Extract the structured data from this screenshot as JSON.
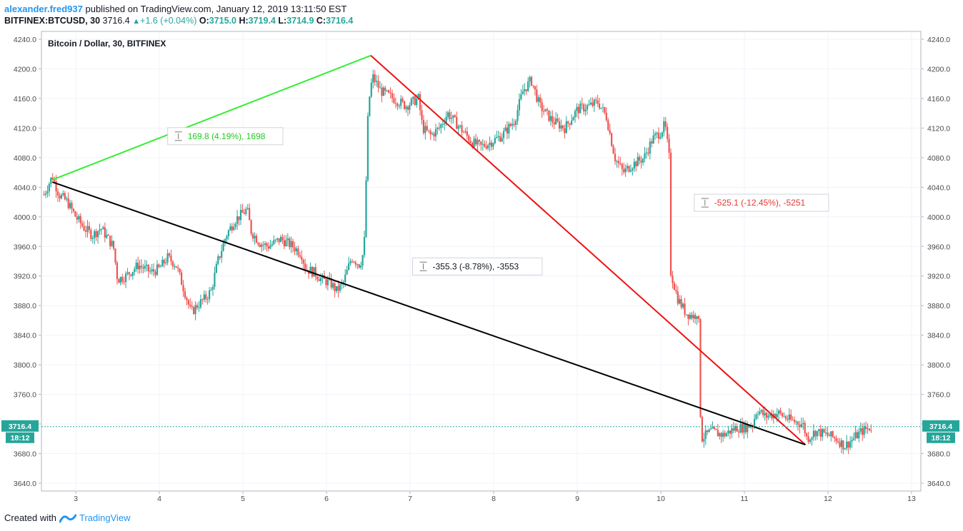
{
  "header": {
    "username": "alexander.fred937",
    "published_text": "published on TradingView.com, January 12, 2019 13:11:50 EST",
    "symbol": "BITFINEX:BTCUSD, 30",
    "last_price": "3716.4",
    "change": "+1.6 (+0.04%)",
    "o_label": "O:",
    "o_value": "3715.0",
    "h_label": "H:",
    "h_value": "3719.4",
    "l_label": "L:",
    "l_value": "3714.9",
    "c_label": "C:",
    "c_value": "3716.4"
  },
  "footer": {
    "created_with": "Created with",
    "brand": "TradingView"
  },
  "colors": {
    "up": "#26a69a",
    "down": "#ef5350",
    "green_line": "#33ee33",
    "red_line": "#ee1111",
    "black_line": "#000000",
    "price_line": "#26a69a"
  },
  "chart_data": {
    "type": "candlestick",
    "title": "Bitcoin / Dollar, 30, BITFINEX",
    "xlabel": "",
    "ylabel": "",
    "x_ticks": [
      "3",
      "4",
      "5",
      "6",
      "7",
      "8",
      "9",
      "10",
      "11",
      "12",
      "13"
    ],
    "x_tick_values": [
      3,
      4,
      5,
      6,
      7,
      8,
      9,
      10,
      11,
      12,
      13
    ],
    "xlim": [
      2.55,
      13.1
    ],
    "y_ticks": [
      "4240.0",
      "4200.0",
      "4160.0",
      "4120.0",
      "4080.0",
      "4040.0",
      "4000.0",
      "3960.0",
      "3920.0",
      "3880.0",
      "3840.0",
      "3800.0",
      "3760.0",
      "3720.0",
      "3680.0",
      "3640.0"
    ],
    "y_tick_values": [
      4240,
      4200,
      4160,
      4120,
      4080,
      4040,
      4000,
      3960,
      3920,
      3880,
      3840,
      3800,
      3760,
      3720,
      3680,
      3640
    ],
    "ylim": [
      3630,
      4248
    ],
    "current_price": 3716.4,
    "current_price_label": "3716.4",
    "countdown_label": "18:12",
    "price_path": [
      [
        2.62,
        4030
      ],
      [
        2.72,
        4055
      ],
      [
        2.8,
        4030
      ],
      [
        2.9,
        4020
      ],
      [
        3.0,
        4000
      ],
      [
        3.1,
        3985
      ],
      [
        3.2,
        3975
      ],
      [
        3.3,
        3985
      ],
      [
        3.45,
        3960
      ],
      [
        3.5,
        3915
      ],
      [
        3.6,
        3920
      ],
      [
        3.75,
        3935
      ],
      [
        3.9,
        3925
      ],
      [
        4.0,
        3930
      ],
      [
        4.1,
        3945
      ],
      [
        4.2,
        3935
      ],
      [
        4.3,
        3900
      ],
      [
        4.38,
        3870
      ],
      [
        4.45,
        3880
      ],
      [
        4.55,
        3890
      ],
      [
        4.62,
        3900
      ],
      [
        4.7,
        3940
      ],
      [
        4.8,
        3975
      ],
      [
        4.9,
        3995
      ],
      [
        5.0,
        4005
      ],
      [
        5.05,
        4010
      ],
      [
        5.1,
        3980
      ],
      [
        5.2,
        3965
      ],
      [
        5.3,
        3960
      ],
      [
        5.45,
        3970
      ],
      [
        5.6,
        3960
      ],
      [
        5.7,
        3950
      ],
      [
        5.75,
        3930
      ],
      [
        5.85,
        3925
      ],
      [
        5.95,
        3915
      ],
      [
        6.05,
        3910
      ],
      [
        6.12,
        3900
      ],
      [
        6.2,
        3910
      ],
      [
        6.3,
        3945
      ],
      [
        6.4,
        3935
      ],
      [
        6.45,
        3955
      ],
      [
        6.5,
        4150
      ],
      [
        6.55,
        4190
      ],
      [
        6.65,
        4170
      ],
      [
        6.8,
        4160
      ],
      [
        6.95,
        4150
      ],
      [
        7.1,
        4160
      ],
      [
        7.15,
        4120
      ],
      [
        7.25,
        4110
      ],
      [
        7.35,
        4120
      ],
      [
        7.45,
        4140
      ],
      [
        7.6,
        4120
      ],
      [
        7.75,
        4100
      ],
      [
        7.85,
        4095
      ],
      [
        7.95,
        4100
      ],
      [
        8.1,
        4110
      ],
      [
        8.25,
        4130
      ],
      [
        8.35,
        4170
      ],
      [
        8.45,
        4185
      ],
      [
        8.55,
        4150
      ],
      [
        8.7,
        4130
      ],
      [
        8.85,
        4120
      ],
      [
        9.0,
        4145
      ],
      [
        9.15,
        4150
      ],
      [
        9.25,
        4155
      ],
      [
        9.35,
        4135
      ],
      [
        9.45,
        4080
      ],
      [
        9.55,
        4060
      ],
      [
        9.65,
        4070
      ],
      [
        9.8,
        4080
      ],
      [
        9.9,
        4105
      ],
      [
        10.0,
        4115
      ],
      [
        10.05,
        4125
      ],
      [
        10.1,
        4080
      ],
      [
        10.12,
        3925
      ],
      [
        10.2,
        3890
      ],
      [
        10.3,
        3870
      ],
      [
        10.4,
        3865
      ],
      [
        10.45,
        3875
      ],
      [
        10.48,
        3700
      ],
      [
        10.6,
        3710
      ],
      [
        10.75,
        3705
      ],
      [
        10.9,
        3715
      ],
      [
        11.0,
        3715
      ],
      [
        11.1,
        3720
      ],
      [
        11.15,
        3740
      ],
      [
        11.25,
        3730
      ],
      [
        11.4,
        3735
      ],
      [
        11.55,
        3725
      ],
      [
        11.7,
        3720
      ],
      [
        11.75,
        3700
      ],
      [
        11.85,
        3710
      ],
      [
        12.0,
        3705
      ],
      [
        12.1,
        3700
      ],
      [
        12.2,
        3690
      ],
      [
        12.3,
        3700
      ],
      [
        12.4,
        3710
      ],
      [
        12.52,
        3716
      ]
    ],
    "trendlines": [
      {
        "color": "green",
        "from": [
          2.72,
          4050
        ],
        "to": [
          6.53,
          4218
        ]
      },
      {
        "color": "red",
        "from": [
          6.53,
          4218
        ],
        "to": [
          11.73,
          3692
        ]
      },
      {
        "color": "black",
        "from": [
          2.72,
          4047
        ],
        "to": [
          11.73,
          3692
        ]
      }
    ],
    "annotations": [
      {
        "text": "169.8 (4.19%), 1698",
        "color": "green",
        "anchor": [
          4.1,
          4109
        ]
      },
      {
        "text": "-525.1 (-12.45%), -5251",
        "color": "red",
        "anchor": [
          10.4,
          4019
        ]
      },
      {
        "text": "-355.3 (-8.78%), -3553",
        "color": "dark",
        "anchor": [
          7.03,
          3933
        ]
      }
    ]
  }
}
